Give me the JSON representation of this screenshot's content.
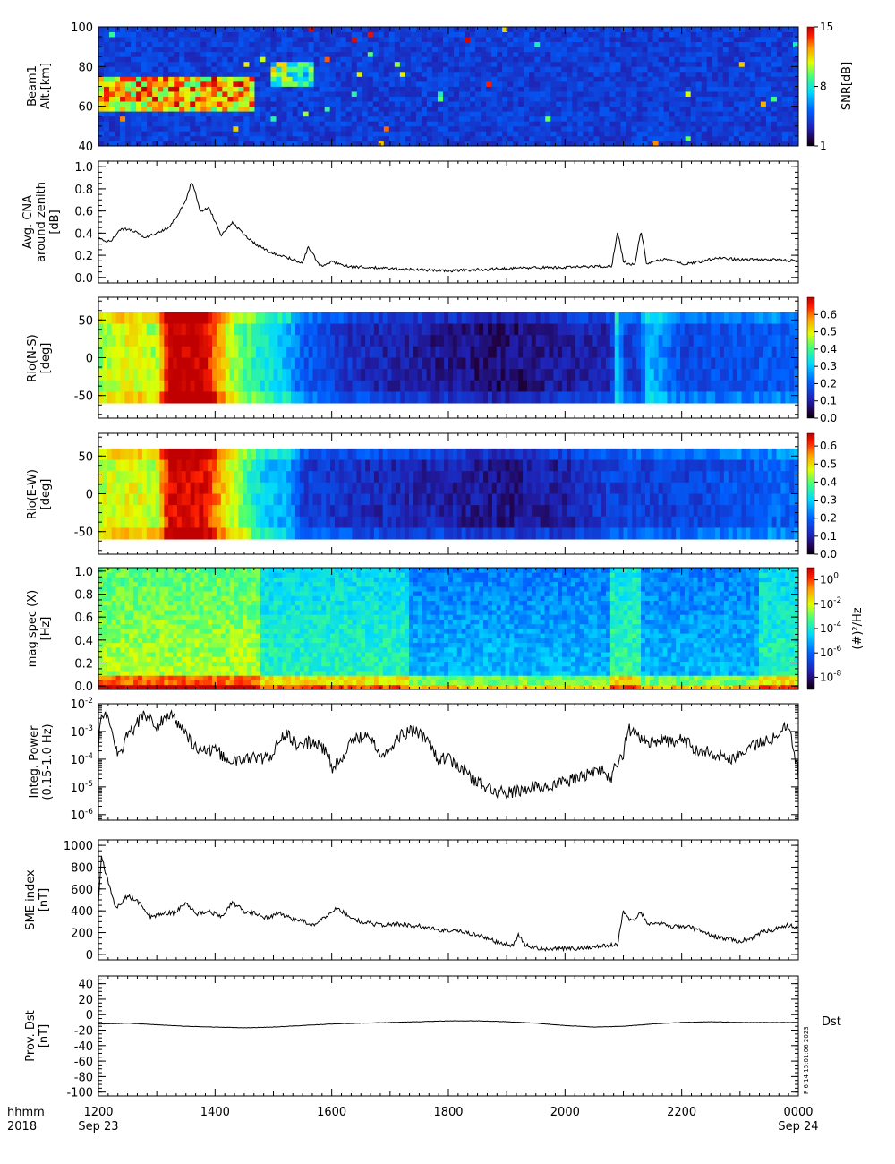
{
  "time_axis": {
    "ticks": [
      "1200",
      "1400",
      "1600",
      "1800",
      "2000",
      "2200",
      "0000"
    ],
    "tick_hours": [
      12,
      14,
      16,
      18,
      20,
      22,
      24
    ],
    "range_hours": [
      12,
      24
    ],
    "row1_left": "hhmm",
    "row2_left": "2018",
    "start_date": "Sep 23",
    "end_date": "Sep 24"
  },
  "credit": "P 6 14 15:01:06 2023",
  "chart_data": [
    {
      "id": "beam1",
      "type": "heatmap",
      "ylabel_lines": [
        "Beam1",
        "Alt.[km]"
      ],
      "ylim": [
        40,
        100
      ],
      "yticks": [
        "40",
        "60",
        "80",
        "100"
      ],
      "colorbar": {
        "label": "SNR[dB]",
        "range": [
          1,
          15
        ],
        "ticks": [
          "1",
          "8",
          "15"
        ],
        "scale": "linear"
      },
      "features": [
        {
          "t_start": 12.0,
          "t_end": 14.7,
          "alt_min": 58,
          "alt_max": 74,
          "level": "high"
        },
        {
          "t_start": 15.0,
          "t_end": 15.7,
          "alt_min": 70,
          "alt_max": 82,
          "level": "medium"
        }
      ]
    },
    {
      "id": "cna",
      "type": "line",
      "ylabel_lines": [
        "Avg. CNA",
        "around zenith",
        "[dB]"
      ],
      "ylim": [
        -0.05,
        1.05
      ],
      "yticks": [
        "0.0",
        "0.2",
        "0.4",
        "0.6",
        "0.8",
        "1.0"
      ],
      "series": [
        {
          "x": [
            12.0,
            12.2,
            12.4,
            12.6,
            12.8,
            13.0,
            13.2,
            13.4,
            13.5,
            13.6,
            13.75,
            13.9,
            14.1,
            14.3,
            14.5,
            14.7,
            14.9,
            15.1,
            15.3,
            15.5,
            15.6,
            15.8,
            16.0,
            16.3,
            16.6,
            17.0,
            17.5,
            18.0,
            18.5,
            19.0,
            19.5,
            20.0,
            20.5,
            20.8,
            20.9,
            21.0,
            21.1,
            21.2,
            21.3,
            21.4,
            21.5,
            21.8,
            22.0,
            22.3,
            22.6,
            23.0,
            23.5,
            24.0
          ],
          "y": [
            0.35,
            0.32,
            0.44,
            0.42,
            0.36,
            0.4,
            0.45,
            0.6,
            0.7,
            0.87,
            0.6,
            0.63,
            0.38,
            0.5,
            0.38,
            0.3,
            0.24,
            0.2,
            0.17,
            0.13,
            0.28,
            0.1,
            0.14,
            0.1,
            0.09,
            0.08,
            0.07,
            0.06,
            0.07,
            0.08,
            0.09,
            0.09,
            0.1,
            0.1,
            0.42,
            0.15,
            0.12,
            0.12,
            0.43,
            0.12,
            0.14,
            0.17,
            0.12,
            0.14,
            0.18,
            0.16,
            0.16,
            0.15
          ]
        }
      ]
    },
    {
      "id": "rio_ns",
      "type": "heatmap",
      "ylabel_lines": [
        "Rio(N-S)",
        "[deg]"
      ],
      "ylim": [
        -80,
        80
      ],
      "yticks": [
        "-50",
        "0",
        "50"
      ],
      "colorbar": {
        "label": "",
        "range": [
          0,
          0.7
        ],
        "ticks": [
          "0.0",
          "0.1",
          "0.2",
          "0.3",
          "0.4",
          "0.5",
          "0.6"
        ],
        "scale": "linear"
      },
      "level_by_time": {
        "x": [
          12.0,
          12.5,
          13.0,
          13.2,
          13.8,
          14.3,
          14.8,
          15.3,
          15.5,
          16.5,
          18.0,
          19.0,
          20.0,
          20.8,
          20.9,
          21.0,
          21.3,
          21.4,
          22.0,
          23.0,
          24.0
        ],
        "y": [
          0.45,
          0.5,
          0.45,
          0.7,
          0.7,
          0.45,
          0.35,
          0.28,
          0.2,
          0.12,
          0.08,
          0.06,
          0.1,
          0.12,
          0.35,
          0.15,
          0.15,
          0.3,
          0.17,
          0.18,
          0.2
        ]
      }
    },
    {
      "id": "rio_ew",
      "type": "heatmap",
      "ylabel_lines": [
        "Rio(E-W)",
        "[deg]"
      ],
      "ylim": [
        -80,
        80
      ],
      "yticks": [
        "-50",
        "0",
        "50"
      ],
      "colorbar": {
        "label": "",
        "range": [
          0,
          0.67
        ],
        "ticks": [
          "0.0",
          "0.1",
          "0.2",
          "0.3",
          "0.4",
          "0.5",
          "0.6"
        ],
        "scale": "linear"
      },
      "level_by_time": {
        "x": [
          12.0,
          12.5,
          13.0,
          13.2,
          13.8,
          14.3,
          14.8,
          15.3,
          15.5,
          16.5,
          18.0,
          19.0,
          20.0,
          20.8,
          21.0,
          22.0,
          23.0,
          24.0
        ],
        "y": [
          0.45,
          0.48,
          0.45,
          0.65,
          0.65,
          0.45,
          0.3,
          0.25,
          0.15,
          0.12,
          0.1,
          0.08,
          0.1,
          0.15,
          0.15,
          0.15,
          0.18,
          0.2
        ]
      }
    },
    {
      "id": "magspec",
      "type": "heatmap",
      "ylabel_lines": [
        "mag spec (X)",
        "[Hz]"
      ],
      "ylim": [
        -0.03,
        1.03
      ],
      "yticks": [
        "0.0",
        "0.2",
        "0.4",
        "0.6",
        "0.8",
        "1.0"
      ],
      "colorbar": {
        "label": "(#)²/Hz",
        "range_log10": [
          -9,
          1
        ],
        "ticks": [
          "10^-8",
          "10^-6",
          "10^-4",
          "10^-2",
          "10^0"
        ],
        "scale": "log"
      }
    },
    {
      "id": "integ_power",
      "type": "line",
      "scale": "log",
      "ylabel_lines": [
        "Integ. Power",
        "(0.15-1.0 Hz)"
      ],
      "ylim_log10": [
        -6.2,
        -2
      ],
      "yticks": [
        "10^-6",
        "10^-5",
        "10^-4",
        "10^-3",
        "10^-2"
      ],
      "series": [
        {
          "x": [
            12.0,
            12.1,
            12.2,
            12.3,
            12.4,
            12.6,
            12.8,
            13.0,
            13.2,
            13.4,
            13.6,
            13.8,
            14.0,
            14.2,
            14.4,
            14.6,
            14.8,
            15.0,
            15.2,
            15.4,
            15.6,
            15.8,
            16.0,
            16.2,
            16.4,
            16.6,
            16.8,
            17.0,
            17.2,
            17.4,
            17.6,
            17.8,
            18.0,
            18.2,
            18.4,
            18.6,
            18.8,
            19.0,
            19.2,
            19.4,
            19.6,
            19.8,
            20.0,
            20.2,
            20.4,
            20.6,
            20.8,
            20.9,
            21.0,
            21.1,
            21.2,
            21.4,
            21.6,
            21.8,
            22.0,
            22.2,
            22.4,
            22.6,
            22.8,
            23.0,
            23.2,
            23.4,
            23.6,
            23.8,
            23.9,
            24.0
          ],
          "y": [
            0.0002,
            0.005,
            0.0015,
            0.0002,
            0.0002,
            0.0012,
            0.004,
            0.0012,
            0.004,
            0.0015,
            0.0003,
            0.0002,
            0.0002,
            0.0001,
            8e-05,
            0.00012,
            0.0001,
            0.00012,
            0.0008,
            0.0003,
            0.0004,
            0.0003,
            5e-05,
            0.0001,
            0.0005,
            0.0008,
            0.0002,
            0.00015,
            0.0008,
            0.001,
            0.0006,
            0.0001,
            0.0001,
            5e-05,
            2e-05,
            1e-05,
            7e-06,
            6e-06,
            7e-06,
            9e-06,
            1e-05,
            1.2e-05,
            1.5e-05,
            2e-05,
            3e-05,
            4e-05,
            2e-05,
            7e-05,
            0.00012,
            0.0012,
            0.0008,
            0.0004,
            0.0005,
            0.0004,
            0.0005,
            0.00025,
            0.0002,
            0.00015,
            0.0001,
            0.00015,
            0.0003,
            0.0004,
            0.0006,
            0.002,
            0.0002,
            2e-05
          ]
        }
      ]
    },
    {
      "id": "sme",
      "type": "line",
      "ylabel_lines": [
        "SME index",
        "[nT]"
      ],
      "ylim": [
        -50,
        1050
      ],
      "yticks": [
        "0",
        "200",
        "400",
        "600",
        "800",
        "1000"
      ],
      "series": [
        {
          "x": [
            12.0,
            12.05,
            12.1,
            12.2,
            12.3,
            12.5,
            12.7,
            12.9,
            13.1,
            13.3,
            13.5,
            13.7,
            13.9,
            14.1,
            14.3,
            14.5,
            14.7,
            14.9,
            15.1,
            15.3,
            15.5,
            15.7,
            15.9,
            16.1,
            16.3,
            16.5,
            16.7,
            16.9,
            17.1,
            17.3,
            17.5,
            17.7,
            17.9,
            18.1,
            18.3,
            18.5,
            18.7,
            18.9,
            19.1,
            19.2,
            19.3,
            19.5,
            19.7,
            19.9,
            20.1,
            20.3,
            20.5,
            20.7,
            20.9,
            21.0,
            21.1,
            21.2,
            21.3,
            21.4,
            21.6,
            21.8,
            22.0,
            22.2,
            22.4,
            22.6,
            22.8,
            23.0,
            23.2,
            23.4,
            23.6,
            23.8,
            24.0
          ],
          "y": [
            480,
            900,
            800,
            600,
            420,
            540,
            470,
            340,
            380,
            380,
            470,
            370,
            400,
            340,
            480,
            390,
            380,
            330,
            380,
            330,
            310,
            260,
            350,
            430,
            340,
            300,
            280,
            270,
            280,
            270,
            260,
            240,
            220,
            220,
            200,
            180,
            140,
            100,
            80,
            180,
            90,
            60,
            50,
            60,
            50,
            60,
            70,
            80,
            90,
            400,
            330,
            310,
            400,
            280,
            290,
            250,
            260,
            240,
            200,
            160,
            140,
            120,
            150,
            210,
            230,
            270,
            240
          ]
        }
      ]
    },
    {
      "id": "dst",
      "type": "line",
      "ylabel_lines": [
        "Prov. Dst",
        "[nT]"
      ],
      "ylim": [
        -105,
        50
      ],
      "yticks": [
        "-100",
        "-80",
        "-60",
        "-40",
        "-20",
        "0",
        "20",
        "40"
      ],
      "legend": "Dst",
      "series": [
        {
          "name": "Dst",
          "x": [
            12.0,
            12.5,
            13.0,
            13.5,
            14.0,
            14.5,
            15.0,
            15.5,
            16.0,
            16.5,
            17.0,
            17.5,
            18.0,
            18.5,
            19.0,
            19.5,
            20.0,
            20.5,
            21.0,
            21.5,
            22.0,
            22.5,
            23.0,
            23.5,
            24.0
          ],
          "y": [
            -12,
            -11,
            -13,
            -15,
            -16,
            -17,
            -16,
            -14,
            -12,
            -11,
            -10,
            -9,
            -8,
            -8,
            -9,
            -11,
            -14,
            -16,
            -15,
            -12,
            -10,
            -9,
            -10,
            -10,
            -10
          ]
        }
      ]
    }
  ]
}
